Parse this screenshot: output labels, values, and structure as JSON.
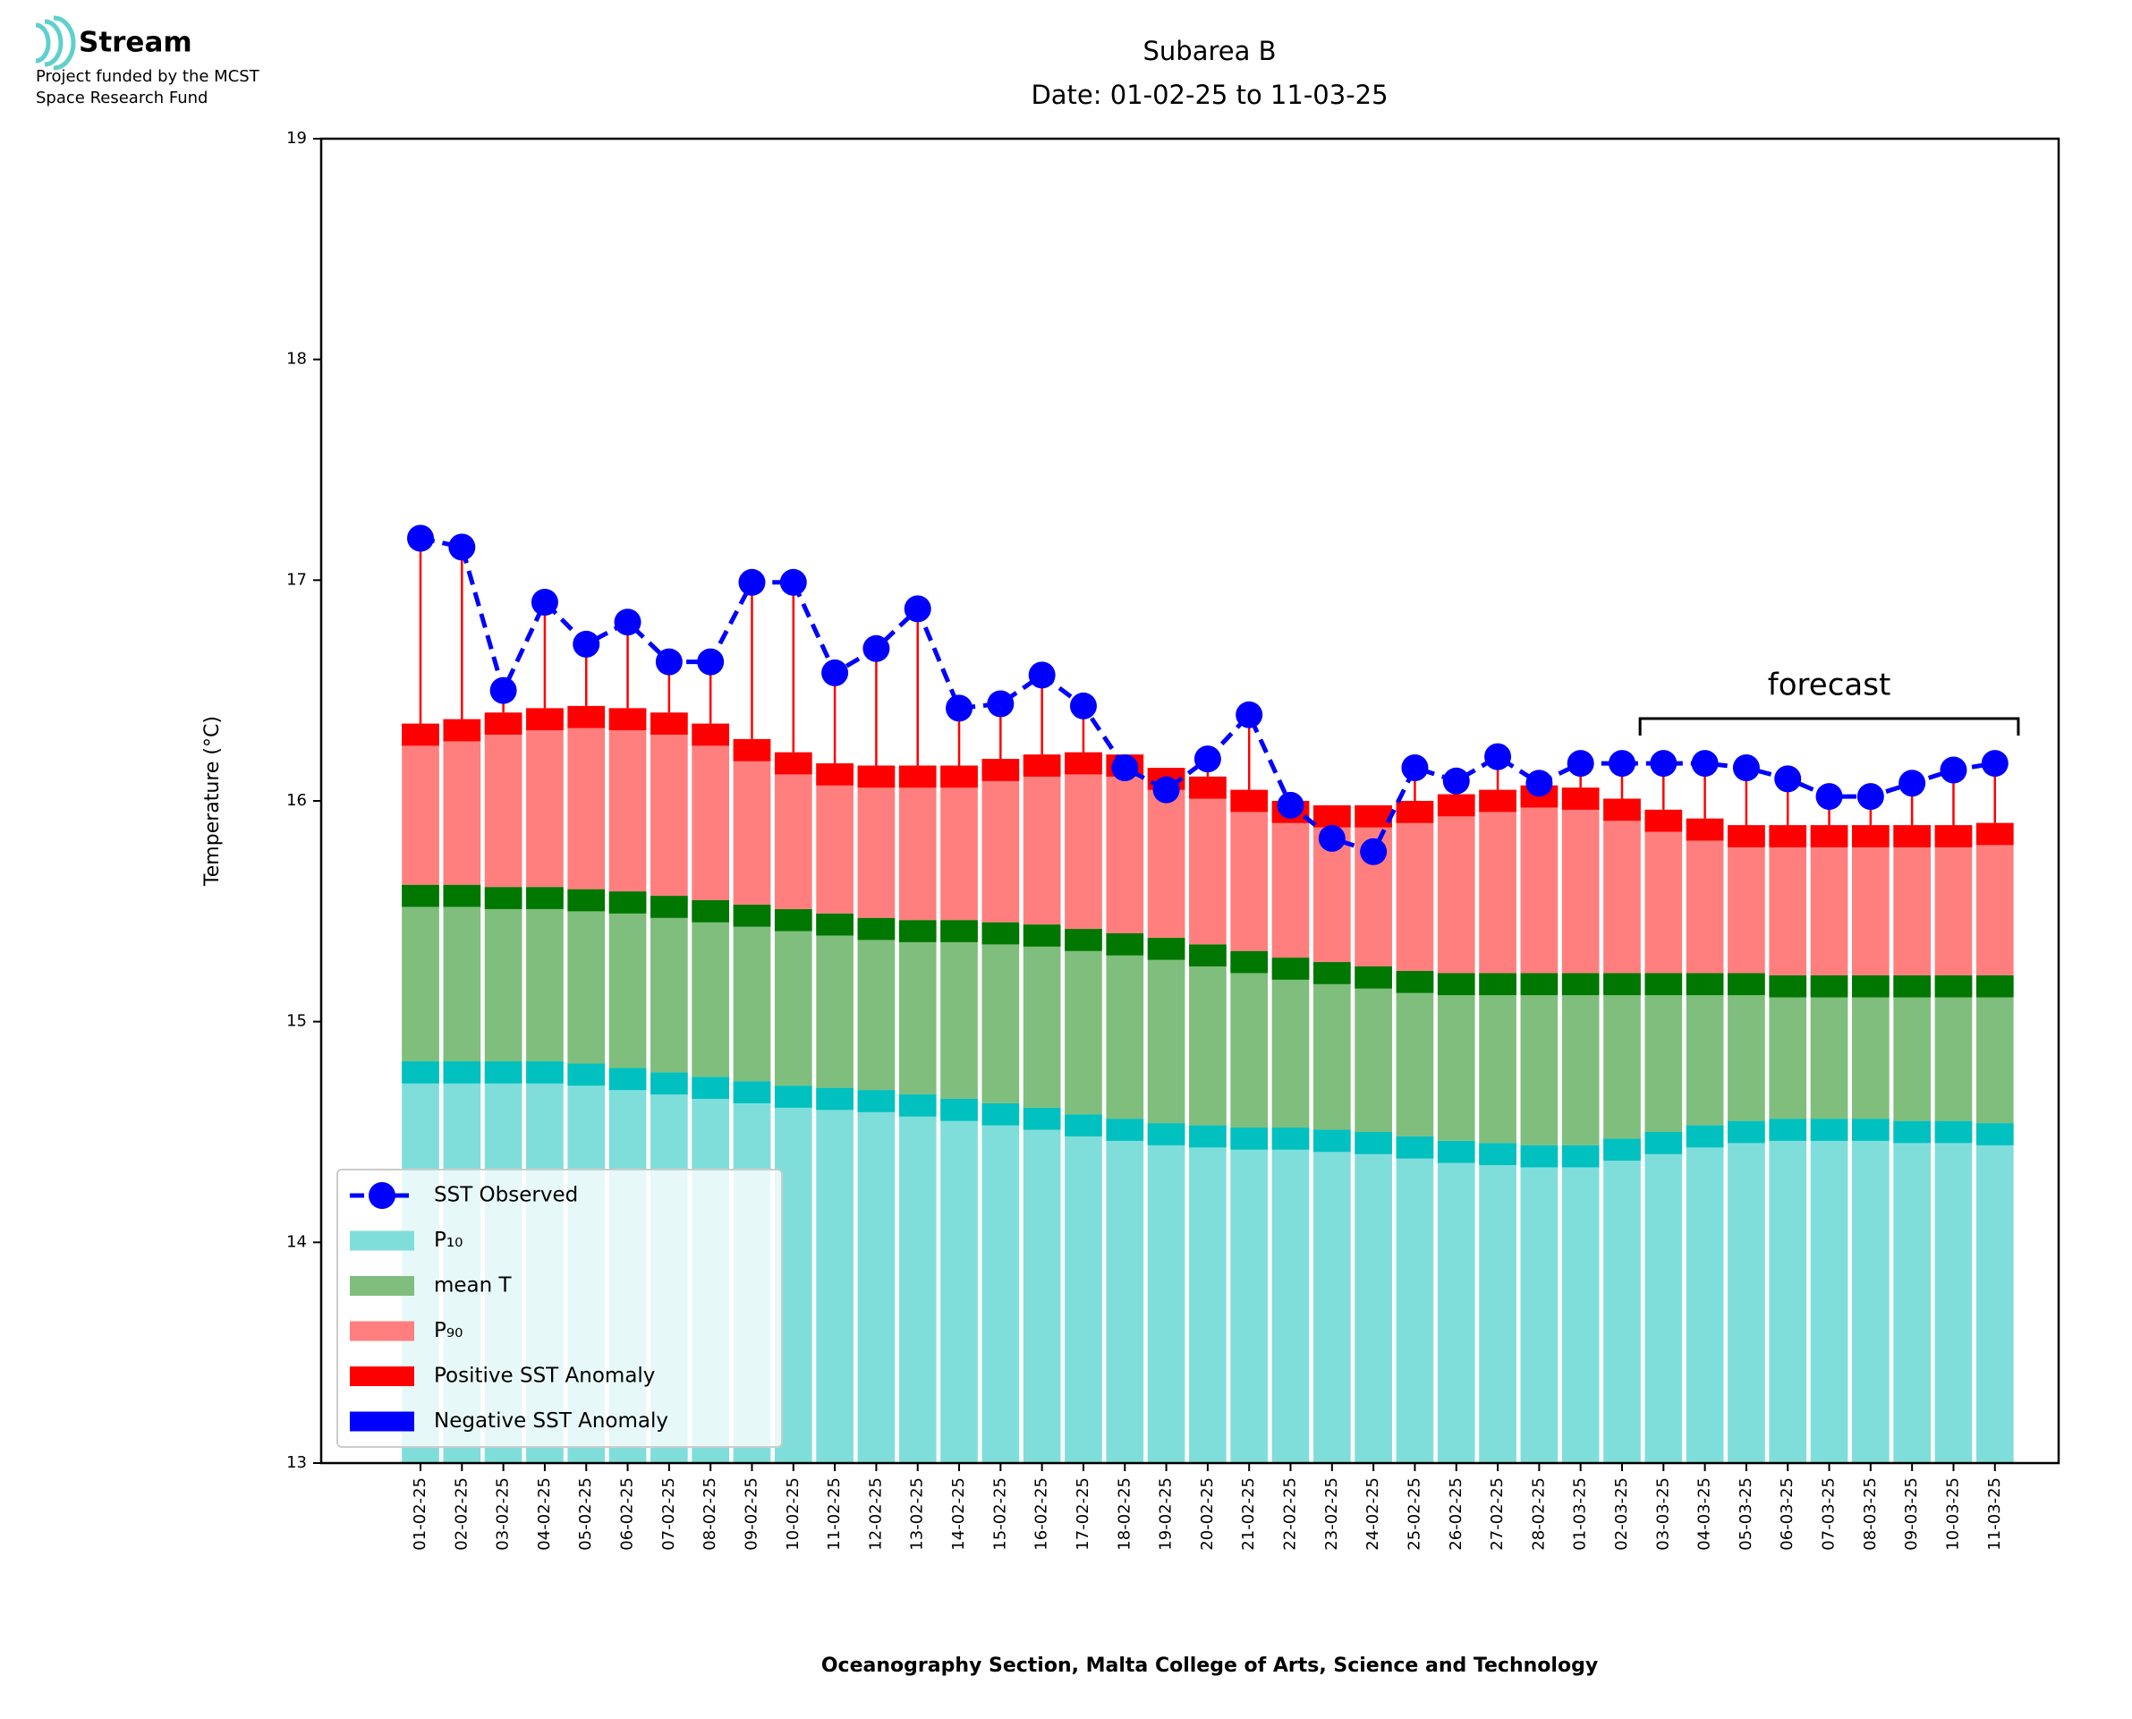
{
  "logo": {
    "name": "Stream",
    "lines": [
      "Project funded by the MCST",
      "Space Research Fund"
    ]
  },
  "chart_data": {
    "type": "percentile_bars",
    "title": [
      "Subarea B",
      "Date: 01-02-25 to 11-03-25"
    ],
    "y_label": "Temperature (°C)",
    "x_label": "Oceanography Section, Malta College of Arts, Science and Technology",
    "categories": [
      "01-02-25",
      "02-02-25",
      "03-02-25",
      "04-02-25",
      "05-02-25",
      "06-02-25",
      "07-02-25",
      "08-02-25",
      "09-02-25",
      "10-02-25",
      "11-02-25",
      "12-02-25",
      "13-02-25",
      "14-02-25",
      "15-02-25",
      "16-02-25",
      "17-02-25",
      "18-02-25",
      "19-02-25",
      "20-02-25",
      "21-02-25",
      "22-02-25",
      "23-02-25",
      "24-02-25",
      "25-02-25",
      "26-02-25",
      "27-02-25",
      "28-02-25",
      "01-03-25",
      "02-03-25",
      "03-03-25",
      "04-03-25",
      "05-03-25",
      "06-03-25",
      "07-03-25",
      "08-03-25",
      "09-03-25",
      "10-03-25",
      "11-03-25"
    ],
    "series": [
      {
        "name": "SST Observed",
        "color": "#0000ff",
        "values": [
          17.19,
          17.15,
          16.5,
          16.9,
          16.71,
          16.81,
          16.63,
          16.63,
          16.99,
          16.99,
          16.58,
          16.69,
          16.87,
          16.42,
          16.44,
          16.57,
          16.43,
          16.15,
          16.05,
          16.19,
          16.39,
          15.98,
          15.83,
          15.77,
          16.15,
          16.09,
          16.2,
          16.08,
          16.17,
          16.17,
          16.17,
          16.17,
          16.15,
          16.1,
          16.02,
          16.02,
          16.08,
          16.14,
          16.17
        ]
      },
      {
        "name": "P₁₀",
        "color": "#80deda",
        "edge_color": "#00c0c0",
        "values": [
          14.82,
          14.82,
          14.82,
          14.82,
          14.81,
          14.79,
          14.77,
          14.75,
          14.73,
          14.71,
          14.7,
          14.69,
          14.67,
          14.65,
          14.63,
          14.61,
          14.58,
          14.56,
          14.54,
          14.53,
          14.52,
          14.52,
          14.51,
          14.5,
          14.48,
          14.46,
          14.45,
          14.44,
          14.44,
          14.47,
          14.5,
          14.53,
          14.55,
          14.56,
          14.56,
          14.56,
          14.55,
          14.55,
          14.54
        ]
      },
      {
        "name": "mean T",
        "color": "#80be7d",
        "edge_color": "#007700",
        "values": [
          15.62,
          15.62,
          15.61,
          15.61,
          15.6,
          15.59,
          15.57,
          15.55,
          15.53,
          15.51,
          15.49,
          15.47,
          15.46,
          15.46,
          15.45,
          15.44,
          15.42,
          15.4,
          15.38,
          15.35,
          15.32,
          15.29,
          15.27,
          15.25,
          15.23,
          15.22,
          15.22,
          15.22,
          15.22,
          15.22,
          15.22,
          15.22,
          15.22,
          15.21,
          15.21,
          15.21,
          15.21,
          15.21,
          15.21
        ]
      },
      {
        "name": "P₉₀",
        "color": "#ff7f7f",
        "edge_color": "#ff0000",
        "values": [
          16.35,
          16.37,
          16.4,
          16.42,
          16.43,
          16.42,
          16.4,
          16.35,
          16.28,
          16.22,
          16.17,
          16.16,
          16.16,
          16.16,
          16.19,
          16.21,
          16.22,
          16.21,
          16.15,
          16.11,
          16.05,
          16.0,
          15.98,
          15.98,
          16.0,
          16.03,
          16.05,
          16.07,
          16.06,
          16.01,
          15.96,
          15.92,
          15.89,
          15.89,
          15.89,
          15.89,
          15.89,
          15.89,
          15.9
        ]
      }
    ],
    "anomalies": [
      {
        "name": "Positive SST Anomaly",
        "color": "#ff0000"
      },
      {
        "name": "Negative SST Anomaly",
        "color": "#0000ff"
      }
    ],
    "annotation": {
      "text": "forecast",
      "from": "03-03-25",
      "to": "11-03-25"
    },
    "ylim": [
      13,
      19
    ],
    "yticks": [
      13,
      14,
      15,
      16,
      17,
      18,
      19
    ],
    "legend": "lower left"
  }
}
